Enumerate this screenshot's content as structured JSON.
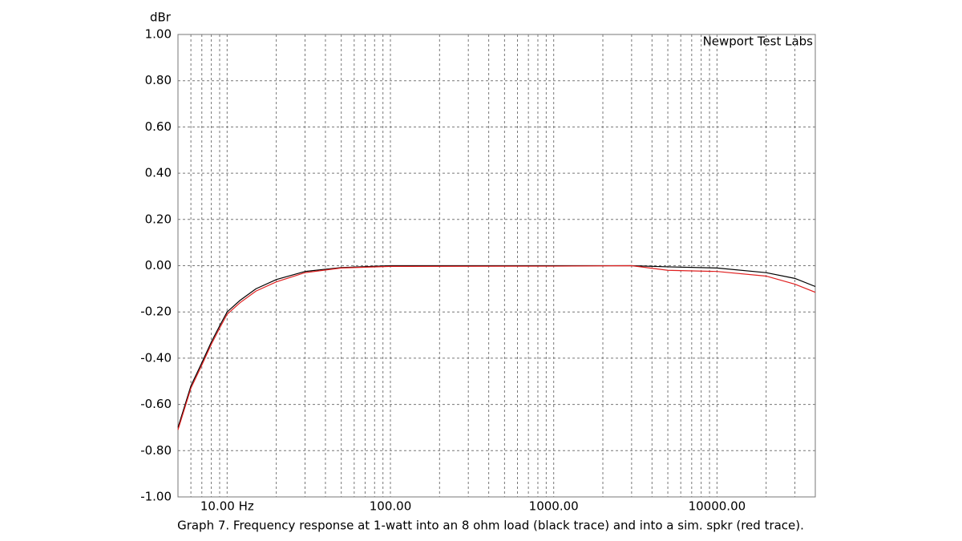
{
  "chart_data": {
    "type": "line",
    "y_label": "dBr",
    "annotation": "Newport Test Labs",
    "caption": "Graph 7. Frequency response at 1-watt into an 8 ohm load (black trace) and into a sim. spkr (red trace).",
    "x": [
      5,
      6,
      7,
      8,
      9,
      10,
      12,
      15,
      20,
      30,
      50,
      100,
      1000,
      3000,
      5000,
      10000,
      20000,
      30000,
      40000
    ],
    "series": [
      {
        "name": "1-watt into an 8 ohm load",
        "color": "#000000",
        "values": [
          -0.7,
          -0.52,
          -0.42,
          -0.33,
          -0.26,
          -0.2,
          -0.15,
          -0.1,
          -0.06,
          -0.025,
          -0.008,
          0,
          0,
          0,
          -0.005,
          -0.01,
          -0.03,
          -0.055,
          -0.09
        ]
      },
      {
        "name": "sim. spkr",
        "color": "#e02020",
        "values": [
          -0.71,
          -0.53,
          -0.43,
          -0.34,
          -0.27,
          -0.21,
          -0.16,
          -0.11,
          -0.07,
          -0.03,
          -0.01,
          -0.003,
          -0.002,
          0,
          -0.02,
          -0.025,
          -0.045,
          -0.08,
          -0.115
        ]
      }
    ],
    "xscale": "log",
    "xlim": [
      5,
      40000
    ],
    "xticks": [
      {
        "value": 10,
        "label": "10.00 Hz"
      },
      {
        "value": 100,
        "label": "100.00"
      },
      {
        "value": 1000,
        "label": "1000.00"
      },
      {
        "value": 10000,
        "label": "10000.00"
      }
    ],
    "xminor": [
      6,
      7,
      8,
      9,
      20,
      30,
      40,
      50,
      60,
      70,
      80,
      90,
      200,
      300,
      400,
      500,
      600,
      700,
      800,
      900,
      2000,
      3000,
      4000,
      5000,
      6000,
      7000,
      8000,
      9000,
      20000,
      30000
    ],
    "ylim": [
      -1,
      1
    ],
    "yticks": [
      {
        "value": -1,
        "label": "-1.00"
      },
      {
        "value": -0.8,
        "label": "-0.80"
      },
      {
        "value": -0.6,
        "label": "-0.60"
      },
      {
        "value": -0.4,
        "label": "-0.40"
      },
      {
        "value": -0.2,
        "label": "-0.20"
      },
      {
        "value": 0,
        "label": "0.00"
      },
      {
        "value": 0.2,
        "label": "0.20"
      },
      {
        "value": 0.4,
        "label": "0.40"
      },
      {
        "value": 0.6,
        "label": "0.60"
      },
      {
        "value": 0.8,
        "label": "0.80"
      },
      {
        "value": 1,
        "label": "1.00"
      }
    ],
    "grid": true
  }
}
